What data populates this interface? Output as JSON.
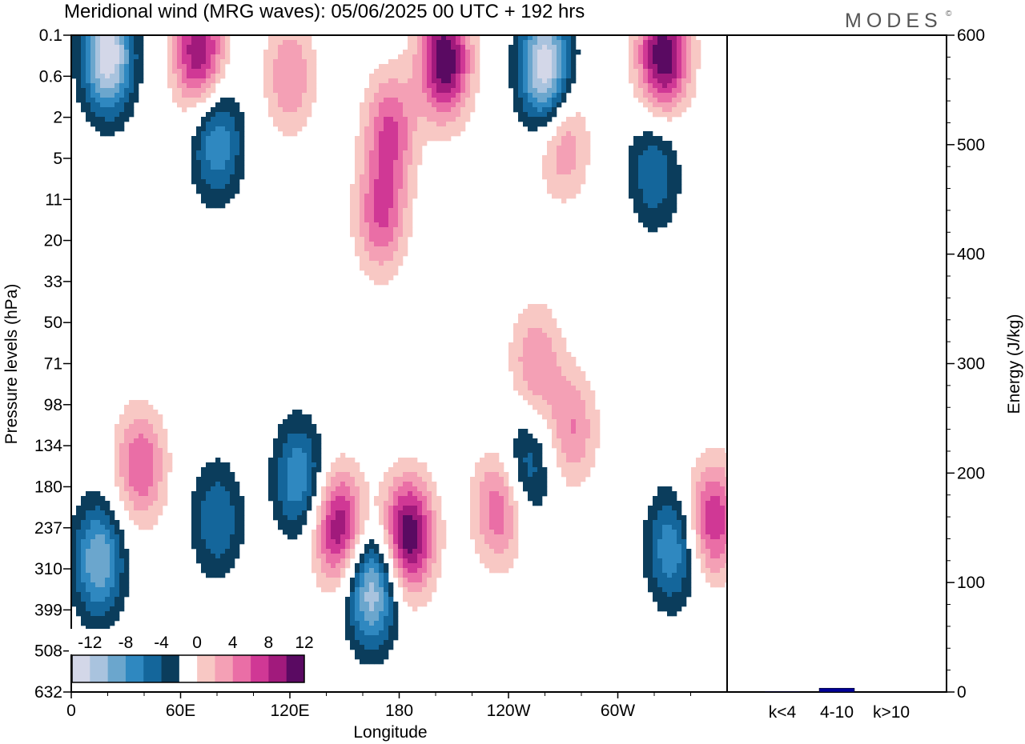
{
  "title": "Meridional wind (MRG waves):  05/06/2025  00 UTC  + 192 hrs",
  "logo": "MODES",
  "logo_mark": "©",
  "colors": {
    "neg": [
      "#0b3d5c",
      "#14669b",
      "#2f88c0",
      "#6ba6cd",
      "#a9c3de",
      "#d3d7e8"
    ],
    "pos": [
      "#f8c8c4",
      "#f4a0b5",
      "#ea6ea6",
      "#d03895",
      "#a11a7c",
      "#5a0a62"
    ],
    "white": "#ffffff",
    "energy_bar": "#000099"
  },
  "chart_data": [
    {
      "type": "heatmap",
      "title": "Meridional wind (MRG waves):  05/06/2025  00 UTC  + 192 hrs",
      "xlabel": "Longitude",
      "ylabel": "Pressure levels (hPa)",
      "x_ticks": [
        "0",
        "60E",
        "120E",
        "180",
        "120W",
        "60W"
      ],
      "x_tick_degrees": [
        0,
        60,
        120,
        180,
        240,
        300
      ],
      "xlim": [
        0,
        360
      ],
      "y_levels": [
        "0.1",
        "0.6",
        "2",
        "5",
        "11",
        "20",
        "33",
        "50",
        "71",
        "98",
        "134",
        "180",
        "237",
        "310",
        "399",
        "508",
        "632"
      ],
      "colorbar_labels": [
        "-12",
        "-8",
        "-4",
        "0",
        "4",
        "8",
        "12"
      ],
      "colorbar_bins": 13,
      "features": [
        {
          "lon": 15,
          "level_index": 12.8,
          "value": -10
        },
        {
          "lon": 38,
          "level_index": 10.5,
          "value": 8
        },
        {
          "lon": 80,
          "level_index": 11.8,
          "value": -6
        },
        {
          "lon": 125,
          "level_index": 10.8,
          "value": -8
        },
        {
          "lon": 147,
          "level_index": 12,
          "value": 12
        },
        {
          "lon": 165,
          "level_index": 13.5,
          "value": -12
        },
        {
          "lon": 185,
          "level_index": 12.2,
          "value": 14
        },
        {
          "lon": 235,
          "level_index": 11.5,
          "value": 8
        },
        {
          "lon": 250,
          "level_index": 10.5,
          "value": -6
        },
        {
          "lon": 275,
          "level_index": 9.6,
          "value": 6
        },
        {
          "lon": 330,
          "level_index": 12.5,
          "value": -8
        },
        {
          "lon": 352,
          "level_index": 11.8,
          "value": 10
        },
        {
          "lon": 20,
          "level_index": 0.5,
          "value": -14
        },
        {
          "lon": 70,
          "level_index": 0.4,
          "value": 12
        },
        {
          "lon": 120,
          "level_index": 1,
          "value": 6
        },
        {
          "lon": 175,
          "level_index": 2.3,
          "value": 8
        },
        {
          "lon": 205,
          "level_index": 0.6,
          "value": 14
        },
        {
          "lon": 260,
          "level_index": 0.8,
          "value": -14
        },
        {
          "lon": 325,
          "level_index": 0.5,
          "value": 14
        },
        {
          "lon": 170,
          "level_index": 4.4,
          "value": 8
        },
        {
          "lon": 270,
          "level_index": 2.6,
          "value": 6
        },
        {
          "lon": 80,
          "level_index": 2.6,
          "value": -8
        },
        {
          "lon": 320,
          "level_index": 3.3,
          "value": -6
        },
        {
          "lon": 255,
          "level_index": 8,
          "value": 6
        }
      ]
    },
    {
      "type": "bar",
      "categories": [
        "k<4",
        "4-10",
        "k>10"
      ],
      "values": [
        0.5,
        3.5,
        0.3
      ],
      "ylabel": "Energy (J/kg)",
      "ylim": [
        0,
        600
      ],
      "y_ticks": [
        "0",
        "100",
        "200",
        "300",
        "400",
        "500",
        "600"
      ]
    }
  ]
}
